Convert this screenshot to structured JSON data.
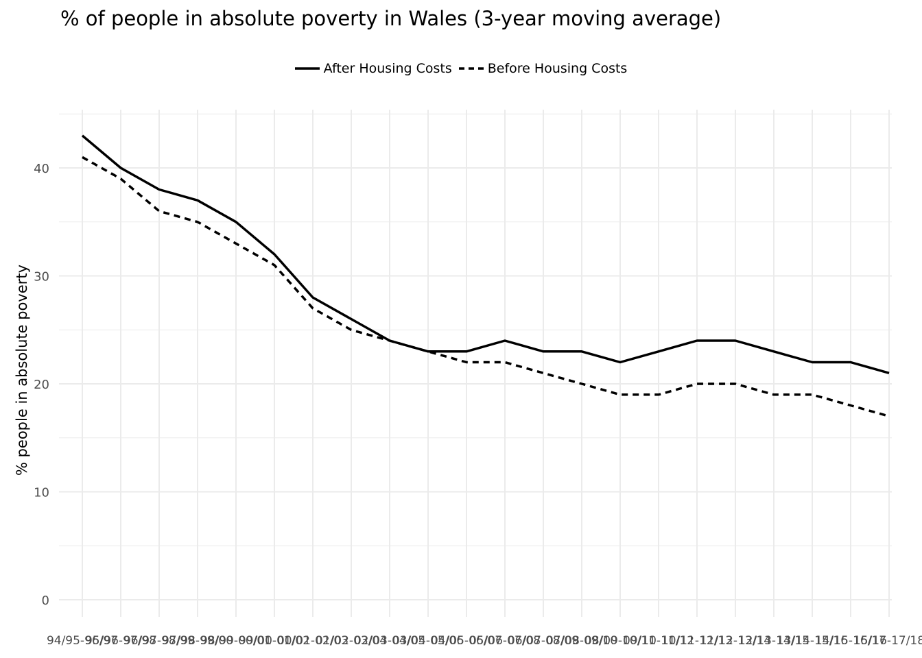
{
  "chart_data": {
    "type": "line",
    "title": "% of people in absolute poverty in Wales (3-year moving average)",
    "xlabel": "",
    "ylabel": "% people in absolute poverty",
    "categories": [
      "94/95-96/97",
      "95/96-97/98",
      "96/97-98/99",
      "97/98-99/00",
      "98/99-00/01",
      "99/00-01/02",
      "00/01-02/03",
      "01/02-03/04",
      "02/03-04/05",
      "03/04-05/06",
      "04/05-06/07",
      "05/06-07/08",
      "06/07-08/09",
      "07/08-09/10",
      "08/09-10/11",
      "09/10-11/12",
      "10/11-12/13",
      "11/12-13/14",
      "12/13-14/15",
      "13/14-15/16",
      "14/15-16/17",
      "15/16-17/18"
    ],
    "series": [
      {
        "name": "After Housing Costs",
        "style": "solid",
        "values": [
          43,
          40,
          38,
          37,
          35,
          32,
          28,
          26,
          24,
          23,
          23,
          24,
          23,
          23,
          22,
          23,
          24,
          24,
          23,
          22,
          22,
          21
        ]
      },
      {
        "name": "Before Housing Costs",
        "style": "dashed",
        "values": [
          41,
          39,
          36,
          35,
          33,
          31,
          27,
          25,
          24,
          23,
          22,
          22,
          21,
          20,
          19,
          19,
          20,
          20,
          19,
          19,
          18,
          17
        ]
      }
    ],
    "yticks": [
      0,
      10,
      20,
      30,
      40
    ],
    "ylim": [
      -1.5,
      45.5
    ],
    "grid": true,
    "legend_position": "top",
    "line_color": "#000000",
    "grid_color": "#ebebeb",
    "tick_label_color": "#4d4d4d"
  }
}
